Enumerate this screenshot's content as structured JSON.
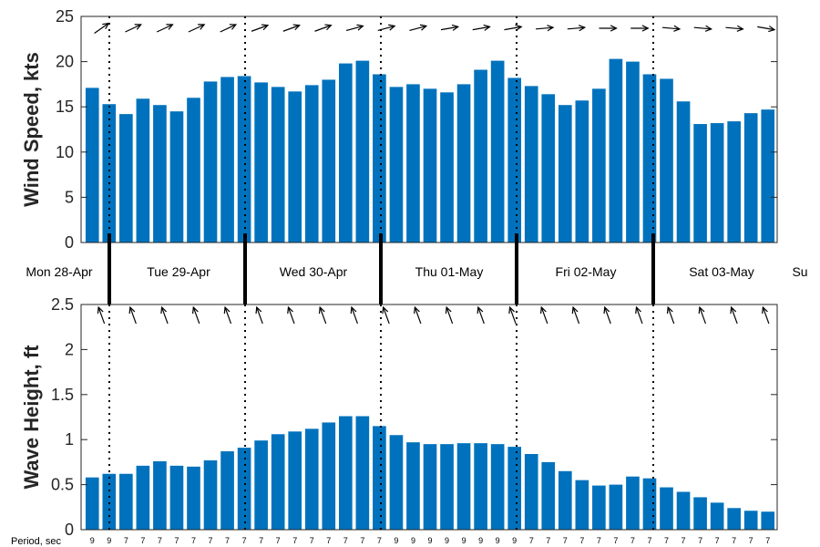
{
  "chart_data": [
    {
      "type": "bar",
      "ylabel": "Wind Speed, kts",
      "ylim": [
        0,
        25
      ],
      "yticks": [
        "0",
        "5",
        "10",
        "15",
        "20",
        "25"
      ],
      "color": "#0072BD",
      "values": [
        17.1,
        15.3,
        14.2,
        15.9,
        15.2,
        14.5,
        16.0,
        17.8,
        18.3,
        18.4,
        17.7,
        17.2,
        16.7,
        17.4,
        18.0,
        19.8,
        20.1,
        18.6,
        17.2,
        17.5,
        17.0,
        16.6,
        17.5,
        19.1,
        20.1,
        18.2,
        17.3,
        16.4,
        15.2,
        15.7,
        17.0,
        20.3,
        20.0,
        18.6,
        18.1,
        15.6,
        13.1,
        13.2,
        13.4,
        14.3,
        14.7
      ],
      "direction_arrows_deg": [
        235,
        245,
        245,
        245,
        245,
        250,
        250,
        250,
        255,
        255,
        255,
        260,
        260,
        260,
        265,
        265,
        270,
        270,
        275,
        275,
        275,
        280
      ],
      "grid": false
    },
    {
      "type": "bar",
      "ylabel": "Wave Height, ft",
      "ylim": [
        0,
        2.5
      ],
      "yticks": [
        "0",
        "0.5",
        "1",
        "1.5",
        "2",
        "2.5"
      ],
      "color": "#0072BD",
      "values": [
        0.58,
        0.62,
        0.62,
        0.71,
        0.76,
        0.71,
        0.7,
        0.77,
        0.87,
        0.91,
        0.99,
        1.06,
        1.09,
        1.12,
        1.19,
        1.26,
        1.26,
        1.15,
        1.05,
        0.97,
        0.95,
        0.95,
        0.96,
        0.96,
        0.95,
        0.92,
        0.84,
        0.75,
        0.65,
        0.55,
        0.49,
        0.5,
        0.59,
        0.57,
        0.47,
        0.42,
        0.36,
        0.3,
        0.24,
        0.21,
        0.2
      ],
      "direction_arrows_deg": [
        160,
        160,
        160,
        160,
        160,
        160,
        160,
        160,
        160,
        160,
        160,
        160,
        160,
        160,
        160,
        160,
        160,
        160,
        160,
        160,
        160,
        160
      ],
      "grid": false,
      "xlabel": "Period, sec",
      "periods": [
        "9",
        "9",
        "7",
        "7",
        "7",
        "7",
        "7",
        "7",
        "7",
        "7",
        "7",
        "7",
        "7",
        "7",
        "7",
        "7",
        "7",
        "7",
        "9",
        "9",
        "9",
        "9",
        "9",
        "9",
        "9",
        "9",
        "7",
        "7",
        "7",
        "7",
        "7",
        "7",
        "7",
        "7",
        "7",
        "7",
        "7",
        "7",
        "7",
        "7",
        "7"
      ]
    }
  ],
  "days": [
    "Mon 28-Apr",
    "Tue 29-Apr",
    "Wed 30-Apr",
    "Thu 01-May",
    "Fri 02-May",
    "Sat 03-May",
    "Su"
  ],
  "period_label": "Period, sec"
}
